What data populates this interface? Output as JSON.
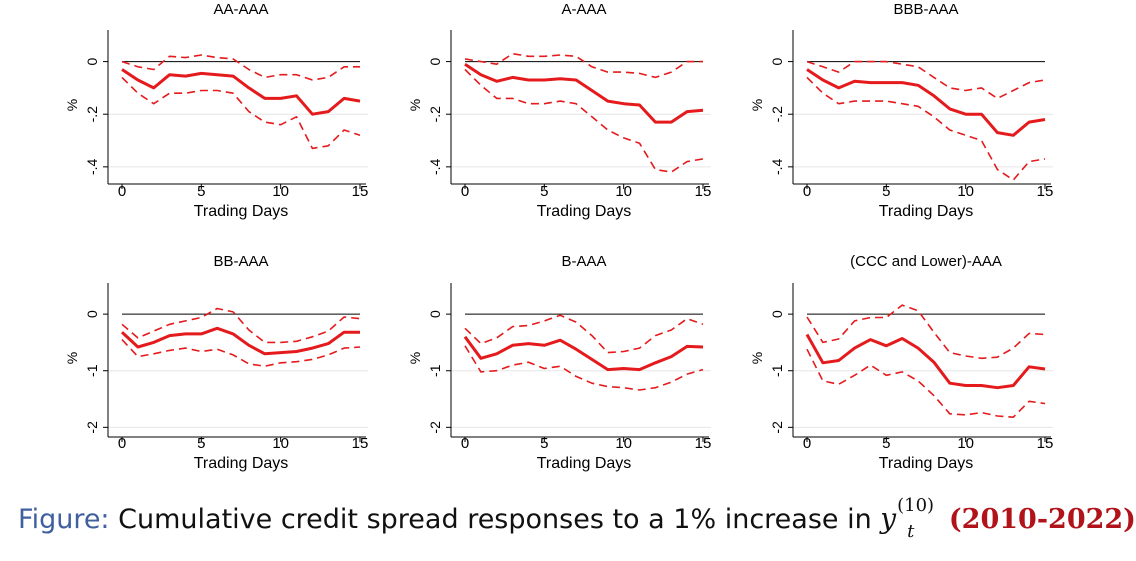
{
  "figure_caption": {
    "lead": "Figure:",
    "text": "Cumulative credit spread responses to a 1% increase in",
    "variable": "y",
    "superscript": "(10)",
    "subscript": "t",
    "period": "(2010-2022)"
  },
  "colors": {
    "line": "#e41a1c",
    "axis": "#000000",
    "grid": "#e6e6e6"
  },
  "chart_data": [
    {
      "type": "line",
      "title": "AA-AAA",
      "xlabel": "Trading Days",
      "ylabel": "%",
      "xlim": [
        0,
        15
      ],
      "ylim": [
        -0.45,
        0.12
      ],
      "xticks": [
        "0",
        "5",
        "10",
        "15"
      ],
      "yticks": [
        "0",
        "-.2",
        "-.4"
      ],
      "ytick_values": [
        0,
        -0.2,
        -0.4
      ],
      "grid": true,
      "x": [
        0,
        1,
        2,
        3,
        4,
        5,
        6,
        7,
        8,
        9,
        10,
        11,
        12,
        13,
        14,
        15
      ],
      "series": [
        {
          "name": "point estimate",
          "style": "solid",
          "values": [
            -0.03,
            -0.07,
            -0.1,
            -0.05,
            -0.055,
            -0.045,
            -0.05,
            -0.055,
            -0.1,
            -0.14,
            -0.14,
            -0.13,
            -0.2,
            -0.19,
            -0.14,
            -0.15
          ]
        },
        {
          "name": "upper band",
          "style": "dashed",
          "values": [
            0.0,
            -0.02,
            -0.03,
            0.02,
            0.015,
            0.025,
            0.015,
            0.01,
            -0.03,
            -0.06,
            -0.05,
            -0.05,
            -0.07,
            -0.06,
            -0.02,
            -0.02
          ]
        },
        {
          "name": "lower band",
          "style": "dashed",
          "values": [
            -0.06,
            -0.12,
            -0.16,
            -0.12,
            -0.12,
            -0.11,
            -0.11,
            -0.12,
            -0.19,
            -0.23,
            -0.24,
            -0.21,
            -0.33,
            -0.32,
            -0.26,
            -0.28
          ]
        }
      ]
    },
    {
      "type": "line",
      "title": "A-AAA",
      "xlabel": "Trading Days",
      "ylabel": "%",
      "xlim": [
        0,
        15
      ],
      "ylim": [
        -0.45,
        0.12
      ],
      "xticks": [
        "0",
        "5",
        "10",
        "15"
      ],
      "yticks": [
        "0",
        "-.2",
        "-.4"
      ],
      "ytick_values": [
        0,
        -0.2,
        -0.4
      ],
      "grid": true,
      "x": [
        0,
        1,
        2,
        3,
        4,
        5,
        6,
        7,
        8,
        9,
        10,
        11,
        12,
        13,
        14,
        15
      ],
      "series": [
        {
          "name": "point estimate",
          "style": "solid",
          "values": [
            -0.01,
            -0.05,
            -0.075,
            -0.06,
            -0.07,
            -0.07,
            -0.065,
            -0.07,
            -0.11,
            -0.15,
            -0.16,
            -0.165,
            -0.23,
            -0.23,
            -0.19,
            -0.185
          ]
        },
        {
          "name": "upper band",
          "style": "dashed",
          "values": [
            0.01,
            0.0,
            -0.01,
            0.03,
            0.02,
            0.02,
            0.025,
            0.02,
            -0.02,
            -0.04,
            -0.04,
            -0.045,
            -0.06,
            -0.04,
            0.0,
            0.0
          ]
        },
        {
          "name": "lower band",
          "style": "dashed",
          "values": [
            -0.03,
            -0.09,
            -0.14,
            -0.14,
            -0.16,
            -0.16,
            -0.15,
            -0.16,
            -0.21,
            -0.26,
            -0.29,
            -0.31,
            -0.41,
            -0.42,
            -0.38,
            -0.37
          ]
        }
      ]
    },
    {
      "type": "line",
      "title": "BBB-AAA",
      "xlabel": "Trading Days",
      "ylabel": "%",
      "xlim": [
        0,
        15
      ],
      "ylim": [
        -0.45,
        0.12
      ],
      "xticks": [
        "0",
        "5",
        "10",
        "15"
      ],
      "yticks": [
        "0",
        "-.2",
        "-.4"
      ],
      "ytick_values": [
        0,
        -0.2,
        -0.4
      ],
      "grid": true,
      "x": [
        0,
        1,
        2,
        3,
        4,
        5,
        6,
        7,
        8,
        9,
        10,
        11,
        12,
        13,
        14,
        15
      ],
      "series": [
        {
          "name": "point estimate",
          "style": "solid",
          "values": [
            -0.03,
            -0.07,
            -0.1,
            -0.075,
            -0.08,
            -0.08,
            -0.08,
            -0.09,
            -0.13,
            -0.18,
            -0.2,
            -0.2,
            -0.27,
            -0.28,
            -0.23,
            -0.22
          ]
        },
        {
          "name": "upper band",
          "style": "dashed",
          "values": [
            0.0,
            -0.02,
            -0.04,
            0.0,
            0.0,
            0.0,
            -0.01,
            -0.02,
            -0.06,
            -0.1,
            -0.11,
            -0.1,
            -0.14,
            -0.11,
            -0.08,
            -0.07
          ]
        },
        {
          "name": "lower band",
          "style": "dashed",
          "values": [
            -0.06,
            -0.12,
            -0.16,
            -0.15,
            -0.15,
            -0.15,
            -0.16,
            -0.17,
            -0.21,
            -0.26,
            -0.28,
            -0.3,
            -0.41,
            -0.45,
            -0.38,
            -0.37
          ]
        }
      ]
    },
    {
      "type": "line",
      "title": "BB-AAA",
      "xlabel": "Trading Days",
      "ylabel": "%",
      "xlim": [
        0,
        15
      ],
      "ylim": [
        -2.1,
        0.55
      ],
      "xticks": [
        "0",
        "5",
        "10",
        "15"
      ],
      "yticks": [
        "0",
        "-1",
        "-2"
      ],
      "ytick_values": [
        0,
        -1,
        -2
      ],
      "grid": true,
      "x": [
        0,
        1,
        2,
        3,
        4,
        5,
        6,
        7,
        8,
        9,
        10,
        11,
        12,
        13,
        14,
        15
      ],
      "series": [
        {
          "name": "point estimate",
          "style": "solid",
          "values": [
            -0.32,
            -0.58,
            -0.5,
            -0.38,
            -0.35,
            -0.35,
            -0.25,
            -0.35,
            -0.55,
            -0.7,
            -0.68,
            -0.66,
            -0.6,
            -0.52,
            -0.32,
            -0.32
          ]
        },
        {
          "name": "upper band",
          "style": "dashed",
          "values": [
            -0.18,
            -0.42,
            -0.3,
            -0.18,
            -0.12,
            -0.06,
            0.1,
            0.04,
            -0.28,
            -0.5,
            -0.5,
            -0.48,
            -0.4,
            -0.3,
            -0.05,
            -0.08
          ]
        },
        {
          "name": "lower band",
          "style": "dashed",
          "values": [
            -0.45,
            -0.75,
            -0.7,
            -0.64,
            -0.6,
            -0.66,
            -0.62,
            -0.72,
            -0.88,
            -0.92,
            -0.86,
            -0.84,
            -0.8,
            -0.72,
            -0.6,
            -0.58
          ]
        }
      ]
    },
    {
      "type": "line",
      "title": "B-AAA",
      "xlabel": "Trading Days",
      "ylabel": "%",
      "xlim": [
        0,
        15
      ],
      "ylim": [
        -2.1,
        0.55
      ],
      "xticks": [
        "0",
        "5",
        "10",
        "15"
      ],
      "yticks": [
        "0",
        "-1",
        "-2"
      ],
      "ytick_values": [
        0,
        -1,
        -2
      ],
      "grid": true,
      "x": [
        0,
        1,
        2,
        3,
        4,
        5,
        6,
        7,
        8,
        9,
        10,
        11,
        12,
        13,
        14,
        15
      ],
      "series": [
        {
          "name": "point estimate",
          "style": "solid",
          "values": [
            -0.4,
            -0.78,
            -0.7,
            -0.55,
            -0.52,
            -0.55,
            -0.46,
            -0.62,
            -0.8,
            -0.98,
            -0.96,
            -0.98,
            -0.86,
            -0.75,
            -0.57,
            -0.58
          ]
        },
        {
          "name": "upper band",
          "style": "dashed",
          "values": [
            -0.25,
            -0.52,
            -0.42,
            -0.22,
            -0.2,
            -0.12,
            -0.02,
            -0.14,
            -0.38,
            -0.68,
            -0.66,
            -0.6,
            -0.38,
            -0.28,
            -0.08,
            -0.18
          ]
        },
        {
          "name": "lower band",
          "style": "dashed",
          "values": [
            -0.56,
            -1.02,
            -1.0,
            -0.9,
            -0.85,
            -0.96,
            -0.92,
            -1.1,
            -1.22,
            -1.28,
            -1.3,
            -1.34,
            -1.3,
            -1.2,
            -1.06,
            -0.98
          ]
        }
      ]
    },
    {
      "type": "line",
      "title": "(CCC and Lower)-AAA",
      "xlabel": "Trading Days",
      "ylabel": "%",
      "xlim": [
        0,
        15
      ],
      "ylim": [
        -2.1,
        0.55
      ],
      "xticks": [
        "0",
        "5",
        "10",
        "15"
      ],
      "yticks": [
        "0",
        "-1",
        "-2"
      ],
      "ytick_values": [
        0,
        -1,
        -2
      ],
      "grid": true,
      "x": [
        0,
        1,
        2,
        3,
        4,
        5,
        6,
        7,
        8,
        9,
        10,
        11,
        12,
        13,
        14,
        15
      ],
      "series": [
        {
          "name": "point estimate",
          "style": "solid",
          "values": [
            -0.36,
            -0.86,
            -0.82,
            -0.6,
            -0.45,
            -0.56,
            -0.43,
            -0.6,
            -0.85,
            -1.22,
            -1.26,
            -1.26,
            -1.3,
            -1.26,
            -0.93,
            -0.97
          ]
        },
        {
          "name": "upper band",
          "style": "dashed",
          "values": [
            -0.05,
            -0.5,
            -0.44,
            -0.12,
            -0.06,
            -0.06,
            0.16,
            0.06,
            -0.32,
            -0.68,
            -0.74,
            -0.78,
            -0.76,
            -0.6,
            -0.34,
            -0.36
          ]
        },
        {
          "name": "lower band",
          "style": "dashed",
          "values": [
            -0.62,
            -1.18,
            -1.24,
            -1.08,
            -0.9,
            -1.08,
            -1.02,
            -1.18,
            -1.44,
            -1.76,
            -1.78,
            -1.74,
            -1.8,
            -1.82,
            -1.54,
            -1.58
          ]
        }
      ]
    }
  ]
}
